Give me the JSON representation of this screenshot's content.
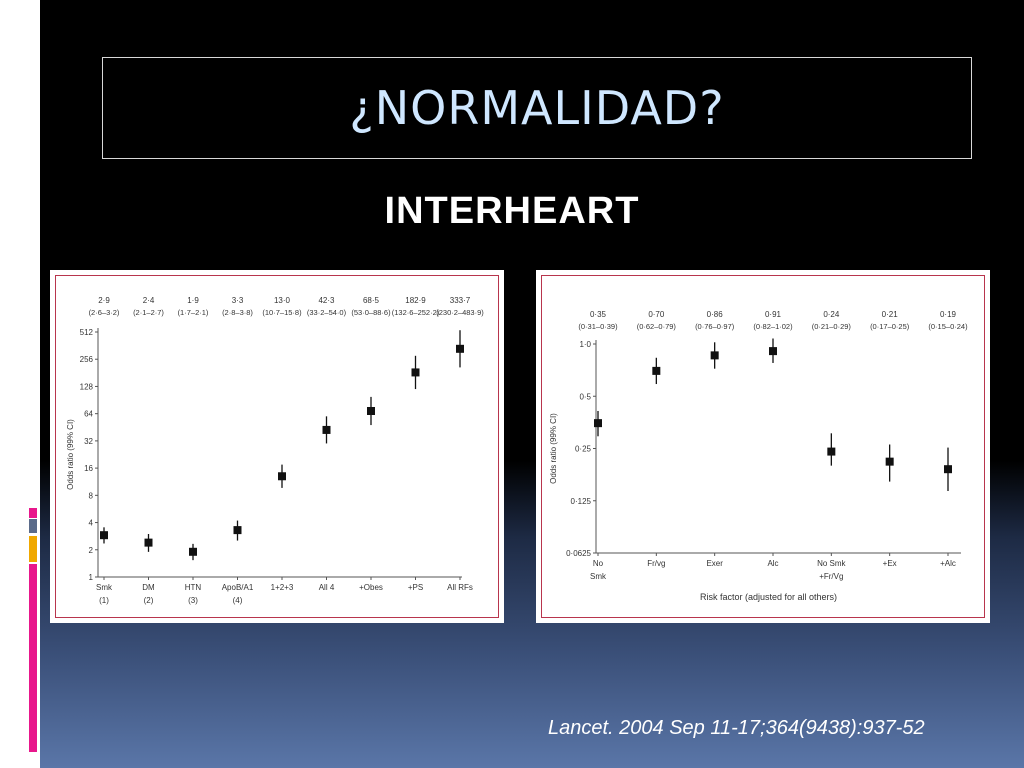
{
  "slide": {
    "title": "¿NORMALIDAD?",
    "subtitle": "INTERHEART",
    "citation": "Lancet. 2004 Sep 11-17;364(9438):937-52"
  },
  "colors": {
    "title": "#cfe7ff",
    "frame": "#b8354d",
    "marker": "#111111",
    "accent_bars": [
      "#e8178c",
      "#5b6b8a",
      "#f0a800",
      "#e8178c"
    ]
  },
  "chart_data": [
    {
      "type": "scatter",
      "title": "",
      "xlabel": "",
      "ylabel": "Odds ratio (99% CI)",
      "yscale": "log2",
      "ylim": [
        1,
        512
      ],
      "yticks": [
        "1",
        "2",
        "4",
        "8",
        "16",
        "32",
        "64",
        "128",
        "256",
        "512"
      ],
      "categories": [
        "Smk",
        "DM",
        "HTN",
        "ApoB/A1",
        "1+2+3",
        "All 4",
        "+Obes",
        "+PS",
        "All RFs"
      ],
      "category_sublabels": [
        "(1)",
        "(2)",
        "(3)",
        "(4)",
        "",
        "",
        "",
        "",
        ""
      ],
      "values": [
        2.9,
        2.4,
        1.9,
        3.3,
        13.0,
        42.3,
        68.5,
        182.9,
        333.7
      ],
      "ci_low": [
        2.6,
        2.1,
        1.7,
        2.8,
        10.7,
        33.2,
        53.0,
        132.6,
        230.2
      ],
      "ci_high": [
        3.2,
        2.7,
        2.1,
        3.8,
        15.8,
        54.0,
        88.6,
        252.2,
        483.9
      ],
      "value_labels": [
        "2·9",
        "2·4",
        "1·9",
        "3·3",
        "13·0",
        "42·3",
        "68·5",
        "182·9",
        "333·7"
      ],
      "ci_labels": [
        "(2·6–3·2)",
        "(2·1–2·7)",
        "(1·7–2·1)",
        "(2·8–3·8)",
        "(10·7–15·8)",
        "(33·2–54·0)",
        "(53·0–88·6)",
        "(132·6–252·2)",
        "(230·2–483·9)"
      ],
      "grid": false
    },
    {
      "type": "scatter",
      "title": "",
      "xlabel": "Risk factor (adjusted for all others)",
      "ylabel": "Odds ratio (99% CI)",
      "yscale": "log2",
      "ylim": [
        0.0625,
        1.0
      ],
      "yticks": [
        "0·0625",
        "0·125",
        "0·25",
        "0·5",
        "1·0"
      ],
      "categories": [
        "No",
        "Fr/vg",
        "Exer",
        "Alc",
        "No Smk",
        "+Ex",
        "+Alc"
      ],
      "category_sublabels": [
        "Smk",
        "",
        "",
        "",
        "+Fr/Vg",
        "",
        ""
      ],
      "values": [
        0.35,
        0.7,
        0.86,
        0.91,
        0.24,
        0.21,
        0.19
      ],
      "ci_low": [
        0.31,
        0.62,
        0.76,
        0.82,
        0.21,
        0.17,
        0.15
      ],
      "ci_high": [
        0.39,
        0.79,
        0.97,
        1.02,
        0.29,
        0.25,
        0.24
      ],
      "value_labels": [
        "0·35",
        "0·70",
        "0·86",
        "0·91",
        "0·24",
        "0·21",
        "0·19"
      ],
      "ci_labels": [
        "(0·31–0·39)",
        "(0·62–0·79)",
        "(0·76–0·97)",
        "(0·82–1·02)",
        "(0·21–0·29)",
        "(0·17–0·25)",
        "(0·15–0·24)"
      ],
      "grid": false
    }
  ]
}
